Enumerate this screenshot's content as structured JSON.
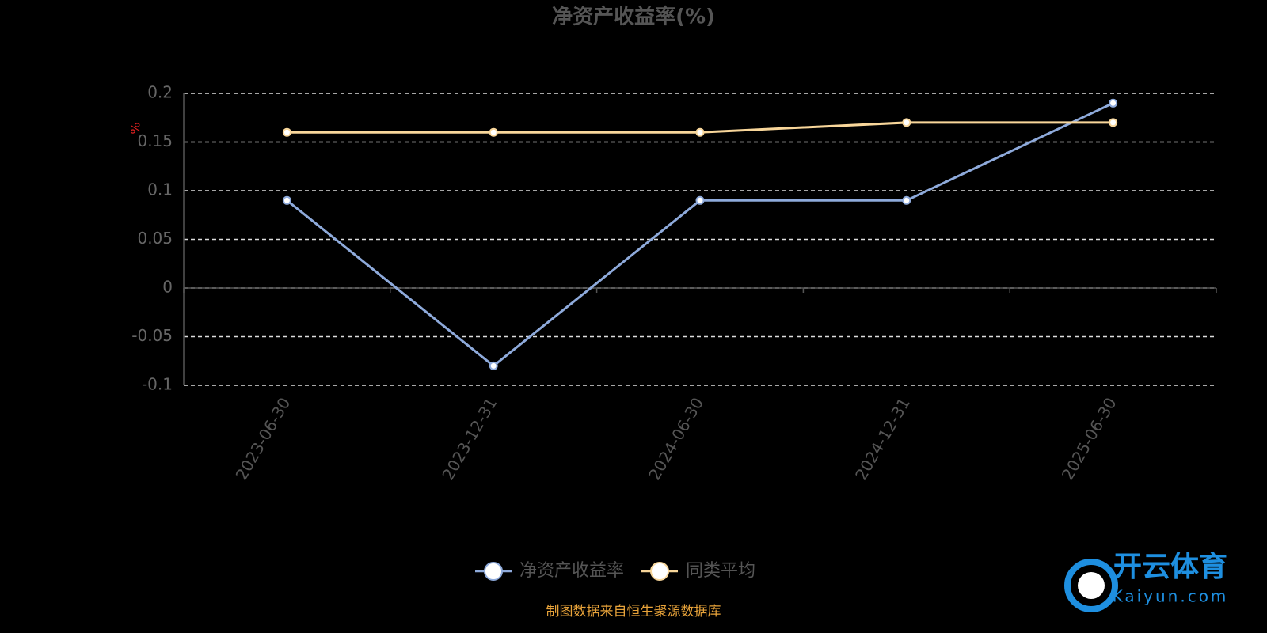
{
  "chart_data": {
    "type": "line",
    "title": "净资产收益率(%)",
    "y_label": "%",
    "categories": [
      "2023-06-30",
      "2023-12-31",
      "2024-06-30",
      "2024-12-31",
      "2025-06-30"
    ],
    "series": [
      {
        "name": "净资产收益率",
        "color": "#8eaadb",
        "values": [
          0.09,
          -0.08,
          0.09,
          0.09,
          0.19
        ]
      },
      {
        "name": "同类平均",
        "color": "#f8d69a",
        "values": [
          0.16,
          0.16,
          0.16,
          0.17,
          0.17
        ]
      }
    ],
    "ylim": [
      -0.1,
      0.2
    ],
    "yticks": [
      0.2,
      0.15,
      0.1,
      0.05,
      0,
      -0.05,
      -0.1
    ],
    "grid": true,
    "legend": "bottom",
    "source": "制图数据来自恒生聚源数据库"
  },
  "watermark": {
    "brand": "开云体育",
    "site": "Kaiyun.com"
  }
}
